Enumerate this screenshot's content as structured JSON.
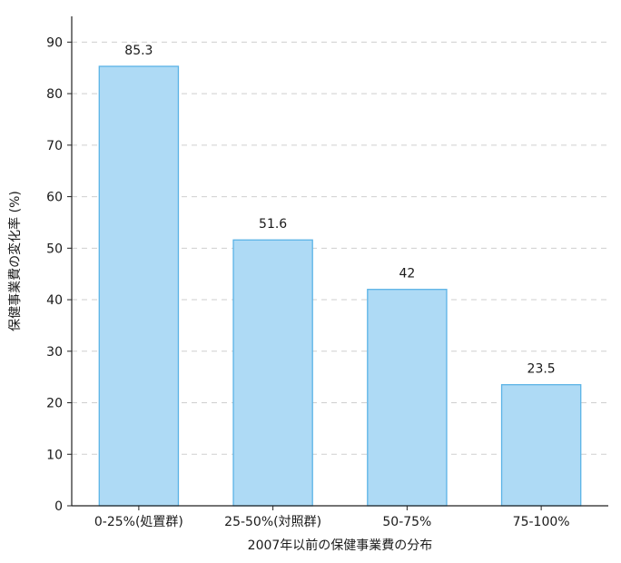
{
  "chart_data": {
    "type": "bar",
    "title": "",
    "xlabel": "2007年以前の保健事業費の分布",
    "ylabel": "保健事業費の変化率 (%)",
    "categories": [
      "0-25%(処置群)",
      "25-50%(対照群)",
      "50-75%",
      "75-100%"
    ],
    "values": [
      85.3,
      51.6,
      42,
      23.5
    ],
    "value_labels": [
      "85.3",
      "51.6",
      "42",
      "23.5"
    ],
    "ylim": [
      0,
      95
    ],
    "yticks": [
      0,
      10,
      20,
      30,
      40,
      50,
      60,
      70,
      80,
      90
    ],
    "grid": "horizontal dashed",
    "legend": "none",
    "colors": {
      "bar_fill": "#aedaf5",
      "bar_stroke": "#5bb3e6",
      "grid": "#cfcfcf",
      "axis": "#222222"
    }
  }
}
